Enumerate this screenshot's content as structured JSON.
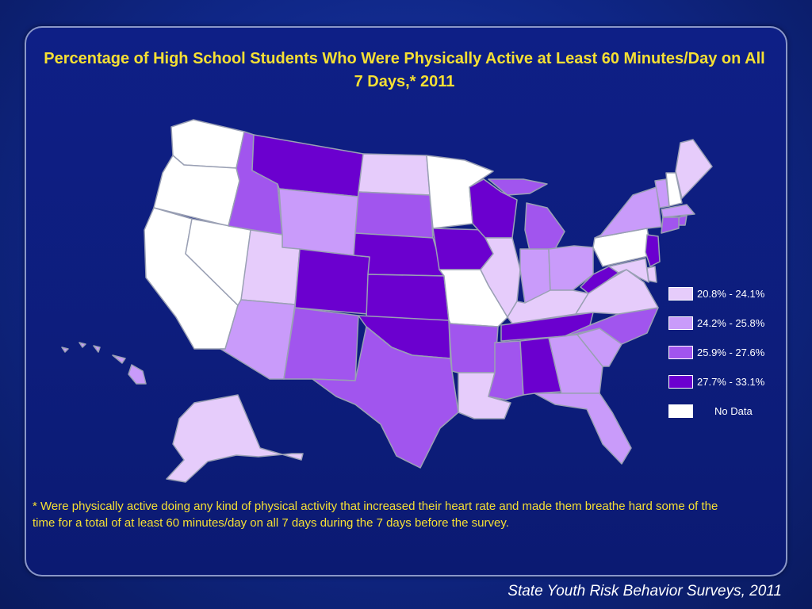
{
  "title": "Percentage of High School Students Who Were Physically Active at Least 60 Minutes/Day on All 7 Days,* 2011",
  "footnote": "* Were physically active doing any kind of physical activity that increased their heart rate and made them breathe hard some of the time for a total of at least 60 minutes/day on all 7 days during the 7 days before the survey.",
  "source": "State Youth Risk Behavior Surveys, 2011",
  "legend": [
    {
      "label": "20.8% - 24.1%",
      "color": "#e6ccfb"
    },
    {
      "label": "24.2% - 25.8%",
      "color": "#c99bfa"
    },
    {
      "label": "25.9% - 27.6%",
      "color": "#a155ee"
    },
    {
      "label": "27.7% - 33.1%",
      "color": "#6b00cf"
    },
    {
      "label": "No Data",
      "color": "#ffffff"
    }
  ],
  "colors": {
    "background": "#0e1f86",
    "title_text": "#f6e033",
    "state_border": "#9aa0b4"
  },
  "map": {
    "categories": {
      "WA": "No Data",
      "OR": "No Data",
      "CA": "No Data",
      "NV": "No Data",
      "ID": "25.9% - 27.6%",
      "MT": "27.7% - 33.1%",
      "WY": "24.2% - 25.8%",
      "UT": "20.8% - 24.1%",
      "AZ": "24.2% - 25.8%",
      "CO": "27.7% - 33.1%",
      "NM": "25.9% - 27.6%",
      "ND": "20.8% - 24.1%",
      "SD": "25.9% - 27.6%",
      "NE": "27.7% - 33.1%",
      "KS": "27.7% - 33.1%",
      "OK": "27.7% - 33.1%",
      "TX": "25.9% - 27.6%",
      "MN": "No Data",
      "IA": "27.7% - 33.1%",
      "MO": "No Data",
      "AR": "25.9% - 27.6%",
      "LA": "20.8% - 24.1%",
      "WI": "27.7% - 33.1%",
      "IL": "20.8% - 24.1%",
      "MI": "25.9% - 27.6%",
      "IN": "24.2% - 25.8%",
      "OH": "24.2% - 25.8%",
      "KY": "20.8% - 24.1%",
      "TN": "27.7% - 33.1%",
      "MS": "25.9% - 27.6%",
      "AL": "27.7% - 33.1%",
      "GA": "24.2% - 25.8%",
      "FL": "24.2% - 25.8%",
      "SC": "24.2% - 25.8%",
      "NC": "25.9% - 27.6%",
      "VA": "20.8% - 24.1%",
      "WV": "27.7% - 33.1%",
      "PA": "No Data",
      "NY": "24.2% - 25.8%",
      "VT": "24.2% - 25.8%",
      "NH": "No Data",
      "ME": "20.8% - 24.1%",
      "MA": "24.2% - 25.8%",
      "RI": "25.9% - 27.6%",
      "CT": "25.9% - 27.6%",
      "NJ": "27.7% - 33.1%",
      "DE": "20.8% - 24.1%",
      "MD": "20.8% - 24.1%",
      "AK": "20.8% - 24.1%",
      "HI": "24.2% - 25.8%"
    }
  }
}
